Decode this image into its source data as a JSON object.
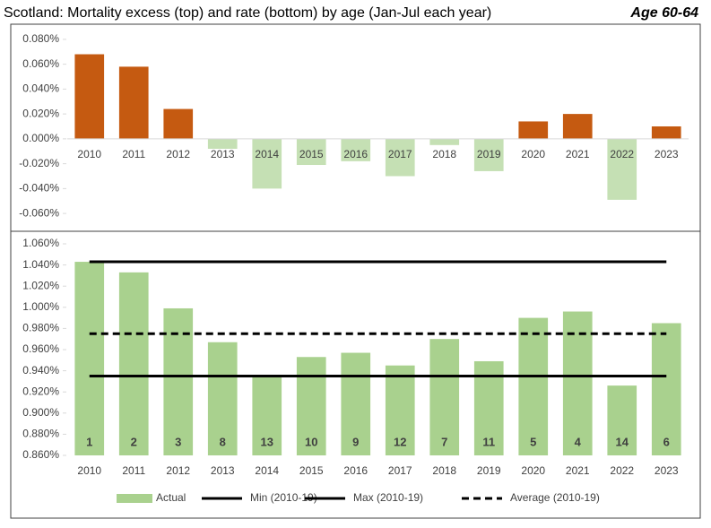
{
  "header": {
    "title": "Scotland: Mortality excess (top) and rate (bottom) by age (Jan-Jul each year)",
    "label": "Age 60-64"
  },
  "chart_data": [
    {
      "type": "bar",
      "categories": [
        "2010",
        "2011",
        "2012",
        "2013",
        "2014",
        "2015",
        "2016",
        "2017",
        "2018",
        "2019",
        "2020",
        "2021",
        "2022",
        "2023"
      ],
      "values": [
        0.068,
        0.058,
        0.024,
        -0.008,
        -0.04,
        -0.021,
        -0.018,
        -0.03,
        -0.005,
        -0.026,
        0.014,
        0.02,
        -0.049,
        0.01
      ],
      "color": "#c55a11",
      "negative_color": "#c5e0b4",
      "ylim": [
        -0.07,
        0.09
      ],
      "yticks": [
        {
          "value": 0.08,
          "label": "0.080%"
        },
        {
          "value": 0.06,
          "label": "0.060%"
        },
        {
          "value": 0.04,
          "label": "0.040%"
        },
        {
          "value": 0.02,
          "label": "0.020%"
        },
        {
          "value": 0,
          "label": "0.000%"
        },
        {
          "value": -0.02,
          "label": "-0.020%"
        },
        {
          "value": -0.04,
          "label": "-0.040%"
        },
        {
          "value": -0.06,
          "label": "-0.060%"
        }
      ]
    },
    {
      "type": "bar_line",
      "categories": [
        "2010",
        "2011",
        "2012",
        "2013",
        "2014",
        "2015",
        "2016",
        "2017",
        "2018",
        "2019",
        "2020",
        "2021",
        "2022",
        "2023"
      ],
      "series": [
        {
          "name": "Actual",
          "kind": "bar",
          "color": "#a9d18e",
          "values": [
            1.043,
            1.033,
            0.999,
            0.967,
            0.935,
            0.953,
            0.957,
            0.945,
            0.97,
            0.949,
            0.99,
            0.996,
            0.926,
            0.985
          ],
          "bar_labels": [
            1,
            2,
            3,
            8,
            13,
            10,
            9,
            12,
            7,
            11,
            5,
            4,
            14,
            6
          ]
        },
        {
          "name": "Min (2010-19)",
          "kind": "line",
          "color": "#000000",
          "dash": false,
          "values": [
            0.935,
            0.935,
            0.935,
            0.935,
            0.935,
            0.935,
            0.935,
            0.935,
            0.935,
            0.935,
            0.935,
            0.935,
            0.935,
            0.935
          ]
        },
        {
          "name": "Max (2010-19)",
          "kind": "line",
          "color": "#000000",
          "dash": false,
          "values": [
            1.043,
            1.043,
            1.043,
            1.043,
            1.043,
            1.043,
            1.043,
            1.043,
            1.043,
            1.043,
            1.043,
            1.043,
            1.043,
            1.043
          ]
        },
        {
          "name": "Average (2010-19)",
          "kind": "line",
          "color": "#000000",
          "dash": true,
          "values": [
            0.975,
            0.975,
            0.975,
            0.975,
            0.975,
            0.975,
            0.975,
            0.975,
            0.975,
            0.975,
            0.975,
            0.975,
            0.975,
            0.975
          ]
        }
      ],
      "ylim": [
        0.86,
        1.06
      ],
      "yticks": [
        {
          "value": 1.06,
          "label": "1.060%"
        },
        {
          "value": 1.04,
          "label": "1.040%"
        },
        {
          "value": 1.02,
          "label": "1.020%"
        },
        {
          "value": 1.0,
          "label": "1.000%"
        },
        {
          "value": 0.98,
          "label": "0.980%"
        },
        {
          "value": 0.96,
          "label": "0.960%"
        },
        {
          "value": 0.94,
          "label": "0.940%"
        },
        {
          "value": 0.92,
          "label": "0.920%"
        },
        {
          "value": 0.9,
          "label": "0.900%"
        },
        {
          "value": 0.88,
          "label": "0.880%"
        },
        {
          "value": 0.86,
          "label": "0.860%"
        }
      ]
    }
  ]
}
